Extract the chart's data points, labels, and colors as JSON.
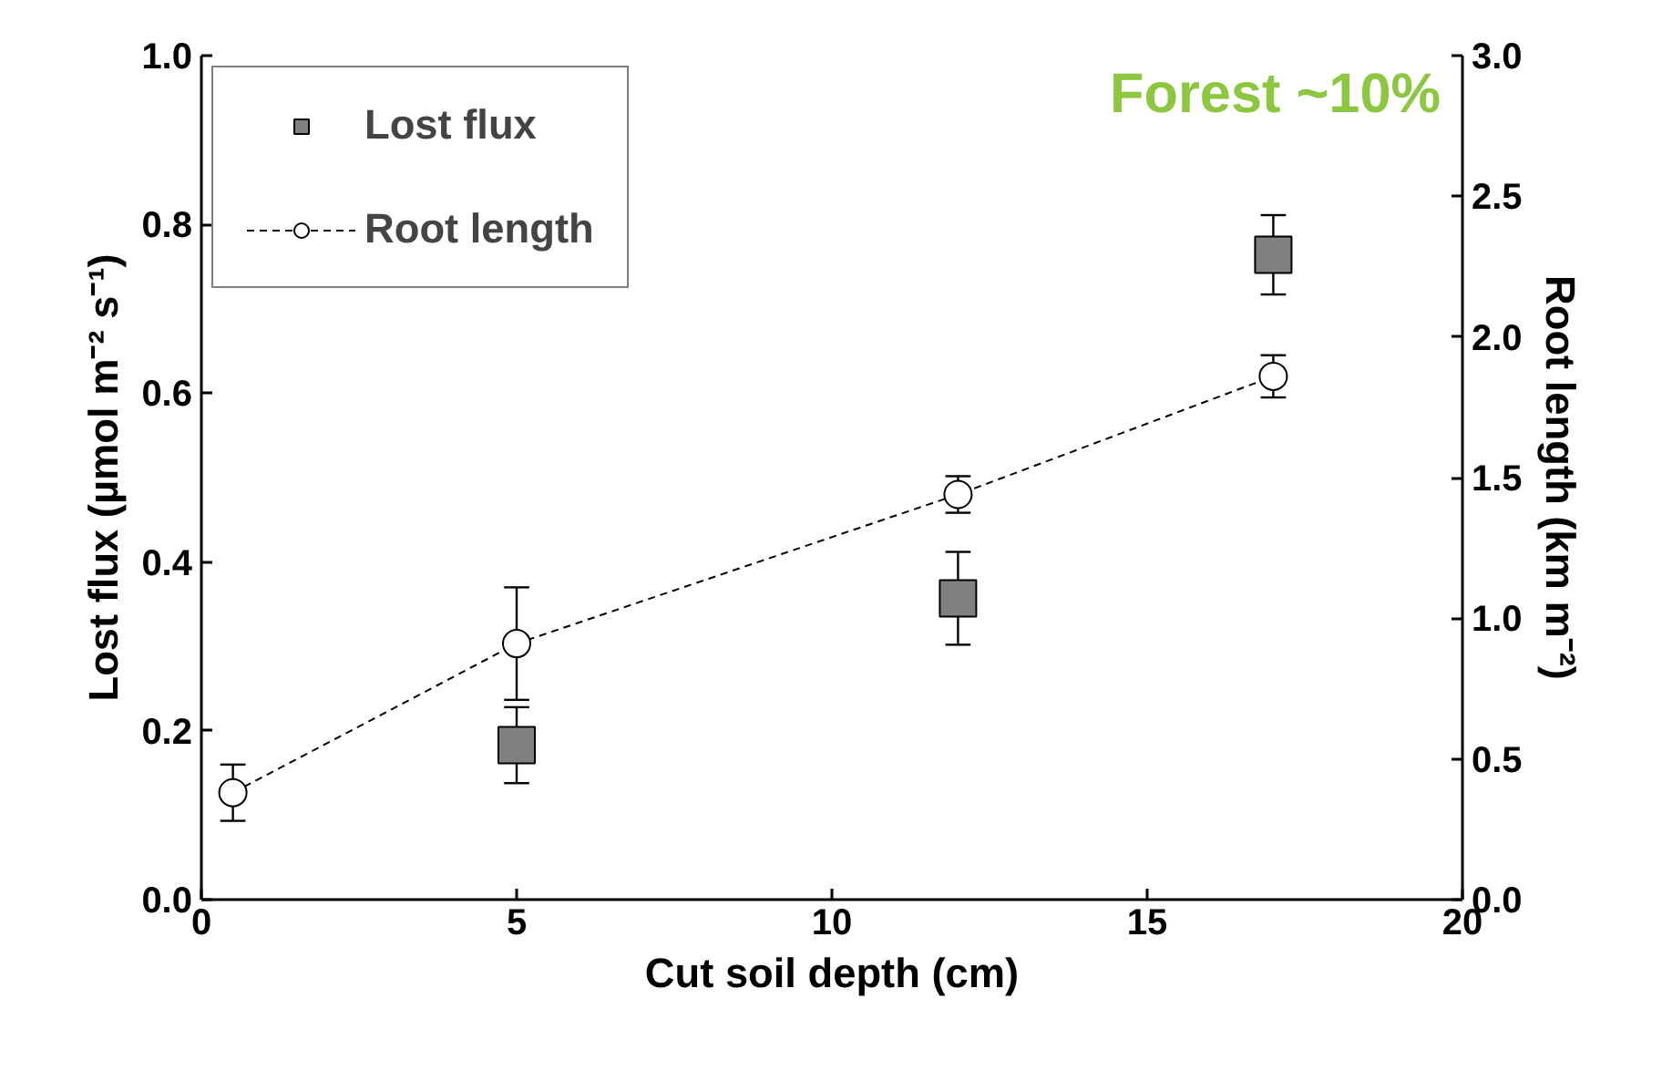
{
  "chart_data": {
    "type": "scatter",
    "xlabel": "Cut soil depth (cm)",
    "ylabel": "Lost flux (µmol m⁻² s⁻¹)",
    "y2label": "Root length (km m⁻²)",
    "xlim": [
      0,
      20
    ],
    "xticks": [
      0,
      5,
      10,
      15,
      20
    ],
    "ylim": [
      0,
      1.0
    ],
    "yticks": [
      {
        "value": 0,
        "label": "0.0"
      },
      {
        "value": 0.2,
        "label": "0.2"
      },
      {
        "value": 0.4,
        "label": "0.4"
      },
      {
        "value": 0.6,
        "label": "0.6"
      },
      {
        "value": 0.8,
        "label": "0.8"
      },
      {
        "value": 1.0,
        "label": "1.0"
      }
    ],
    "y2lim": [
      0,
      3.0
    ],
    "y2ticks": [
      {
        "value": 0,
        "label": "0.0"
      },
      {
        "value": 0.5,
        "label": "0.5"
      },
      {
        "value": 1.0,
        "label": "1.0"
      },
      {
        "value": 1.5,
        "label": "1.5"
      },
      {
        "value": 2.0,
        "label": "2.0"
      },
      {
        "value": 2.5,
        "label": "2.5"
      },
      {
        "value": 3.0,
        "label": "3.0"
      }
    ],
    "series": [
      {
        "name": "Lost flux",
        "marker": "square",
        "color": "#808080",
        "x": [
          5,
          12,
          17
        ],
        "values": [
          0.183,
          0.357,
          0.764
        ],
        "errors": [
          0.045,
          0.055,
          0.047
        ]
      },
      {
        "name": "Root length",
        "type": "line",
        "marker": "circle",
        "line_style": "dashed",
        "axis": "y2",
        "color": "#000000",
        "x": [
          0.5,
          5,
          12,
          17
        ],
        "values": [
          0.38,
          0.91,
          1.44,
          1.86
        ],
        "errors": [
          0.1,
          0.2,
          0.065,
          0.075
        ]
      }
    ],
    "annotations": [
      "Forest ~10%"
    ],
    "legend": "top left",
    "grid": false
  }
}
